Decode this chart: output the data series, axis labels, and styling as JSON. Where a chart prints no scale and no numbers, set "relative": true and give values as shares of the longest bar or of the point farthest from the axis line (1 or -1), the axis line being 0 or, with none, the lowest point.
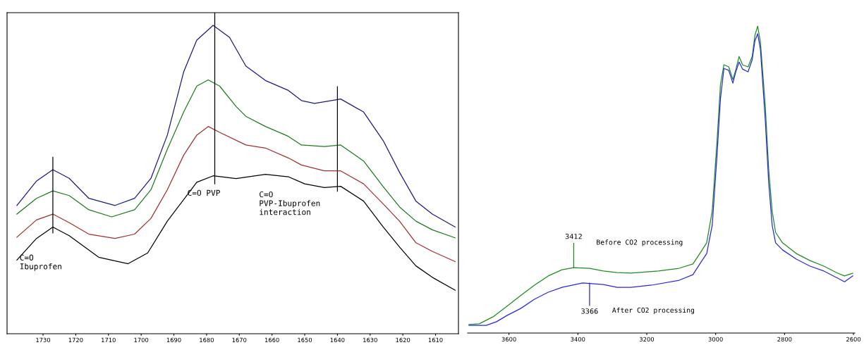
{
  "chart_data": [
    {
      "type": "line",
      "relative": true,
      "tick_labels": "x",
      "grid": false,
      "legend": false,
      "xlim": [
        1741,
        1603
      ],
      "xticks": [
        1730,
        1720,
        1710,
        1700,
        1690,
        1680,
        1670,
        1660,
        1650,
        1640,
        1630,
        1620,
        1610
      ],
      "series": [
        {
          "color": "#1a1a80",
          "x": [
            1738,
            1732,
            1727,
            1722,
            1716,
            1708,
            1702,
            1697,
            1692,
            1687,
            1683,
            1678,
            1673,
            1668,
            1662,
            1655,
            1651,
            1647,
            1639,
            1632,
            1626,
            1621,
            1616,
            1611,
            1604
          ],
          "values": [
            0.416,
            0.495,
            0.532,
            0.504,
            0.439,
            0.416,
            0.439,
            0.504,
            0.644,
            0.849,
            0.952,
            1.0,
            0.961,
            0.868,
            0.821,
            0.789,
            0.756,
            0.747,
            0.761,
            0.719,
            0.626,
            0.523,
            0.43,
            0.388,
            0.346
          ]
        },
        {
          "color": "#1e7a1e",
          "x": [
            1738,
            1732,
            1727,
            1722,
            1716,
            1709,
            1702,
            1697,
            1692,
            1687,
            1683,
            1679.5,
            1676,
            1671,
            1668,
            1662,
            1655,
            1651,
            1644,
            1639,
            1632,
            1626,
            1621,
            1616,
            1611,
            1604
          ],
          "values": [
            0.388,
            0.439,
            0.463,
            0.448,
            0.402,
            0.379,
            0.402,
            0.467,
            0.598,
            0.719,
            0.803,
            0.823,
            0.803,
            0.737,
            0.705,
            0.672,
            0.64,
            0.612,
            0.607,
            0.612,
            0.56,
            0.477,
            0.411,
            0.365,
            0.337,
            0.311
          ]
        },
        {
          "color": "#a03030",
          "x": [
            1738,
            1732,
            1727,
            1722,
            1716,
            1708,
            1702,
            1697,
            1692,
            1687,
            1683,
            1679.5,
            1676,
            1668,
            1662,
            1655,
            1651,
            1644,
            1639,
            1632,
            1626,
            1621,
            1616,
            1611,
            1604
          ],
          "values": [
            0.313,
            0.369,
            0.388,
            0.36,
            0.323,
            0.309,
            0.323,
            0.374,
            0.467,
            0.579,
            0.644,
            0.672,
            0.653,
            0.612,
            0.602,
            0.57,
            0.547,
            0.528,
            0.528,
            0.486,
            0.421,
            0.365,
            0.295,
            0.267,
            0.234
          ]
        },
        {
          "color": "#000000",
          "x": [
            1738,
            1732,
            1727,
            1722,
            1713,
            1704,
            1698,
            1692,
            1683,
            1678,
            1671,
            1662,
            1655,
            1650,
            1644,
            1639,
            1632,
            1626,
            1621,
            1616,
            1611,
            1604
          ],
          "values": [
            0.239,
            0.309,
            0.346,
            0.318,
            0.248,
            0.227,
            0.262,
            0.365,
            0.491,
            0.512,
            0.503,
            0.517,
            0.509,
            0.486,
            0.474,
            0.478,
            0.43,
            0.346,
            0.281,
            0.22,
            0.183,
            0.141
          ]
        }
      ],
      "ref_lines": [
        {
          "axis": "x",
          "value": 1727,
          "label": "C=O\nIbuprofen",
          "color": "#000000"
        },
        {
          "axis": "x",
          "value": 1677.5,
          "label": "C=O PVP",
          "color": "#000000"
        },
        {
          "axis": "x",
          "value": 1640,
          "label": "C=O\nPVP-Ibuprofen\ninteraction",
          "color": "#000000"
        }
      ]
    },
    {
      "type": "line",
      "relative": true,
      "tick_labels": "x",
      "grid": false,
      "legend": false,
      "xlim": [
        3720,
        2596
      ],
      "xticks": [
        3600,
        3400,
        3200,
        3000,
        2800,
        2600
      ],
      "series": [
        {
          "color": "#1e8c1e",
          "x": [
            3716,
            3686,
            3646,
            3606,
            3566,
            3526,
            3486,
            3446,
            3412,
            3366,
            3326,
            3286,
            3246,
            3166,
            3106,
            3066,
            3046,
            3026,
            3010,
            2996,
            2986,
            2976,
            2962,
            2950,
            2942,
            2932,
            2922,
            2906,
            2894,
            2886,
            2878,
            2870,
            2856,
            2846,
            2836,
            2826,
            2806,
            2766,
            2726,
            2686,
            2646,
            2626,
            2602
          ],
          "values": [
            0.028,
            0.03,
            0.053,
            0.087,
            0.122,
            0.156,
            0.186,
            0.206,
            0.213,
            0.211,
            0.202,
            0.197,
            0.195,
            0.202,
            0.211,
            0.225,
            0.259,
            0.294,
            0.397,
            0.626,
            0.81,
            0.874,
            0.867,
            0.826,
            0.856,
            0.901,
            0.874,
            0.867,
            0.901,
            0.97,
            1.0,
            0.947,
            0.741,
            0.534,
            0.397,
            0.328,
            0.294,
            0.259,
            0.236,
            0.218,
            0.195,
            0.186,
            0.195
          ]
        },
        {
          "color": "#2828e6",
          "x": [
            3716,
            3666,
            3636,
            3606,
            3566,
            3526,
            3486,
            3446,
            3386,
            3326,
            3286,
            3246,
            3186,
            3106,
            3066,
            3046,
            3026,
            3010,
            2996,
            2986,
            2976,
            2962,
            2950,
            2942,
            2932,
            2922,
            2906,
            2894,
            2886,
            2878,
            2870,
            2856,
            2846,
            2836,
            2826,
            2806,
            2766,
            2726,
            2686,
            2646,
            2626,
            2602
          ],
          "values": [
            0.025,
            0.025,
            0.037,
            0.057,
            0.08,
            0.11,
            0.133,
            0.149,
            0.163,
            0.158,
            0.149,
            0.149,
            0.156,
            0.172,
            0.19,
            0.225,
            0.259,
            0.351,
            0.58,
            0.764,
            0.862,
            0.856,
            0.814,
            0.849,
            0.883,
            0.86,
            0.851,
            0.89,
            0.952,
            0.975,
            0.924,
            0.695,
            0.489,
            0.351,
            0.294,
            0.271,
            0.241,
            0.218,
            0.202,
            0.179,
            0.167,
            0.186
          ]
        }
      ],
      "annotations": [
        {
          "text": "3412",
          "x": 3412,
          "y": 0.213
        },
        "Before CO2 processing",
        {
          "text": "3366",
          "x": 3366,
          "y": 0.163
        },
        "After CO2 processing"
      ]
    }
  ]
}
